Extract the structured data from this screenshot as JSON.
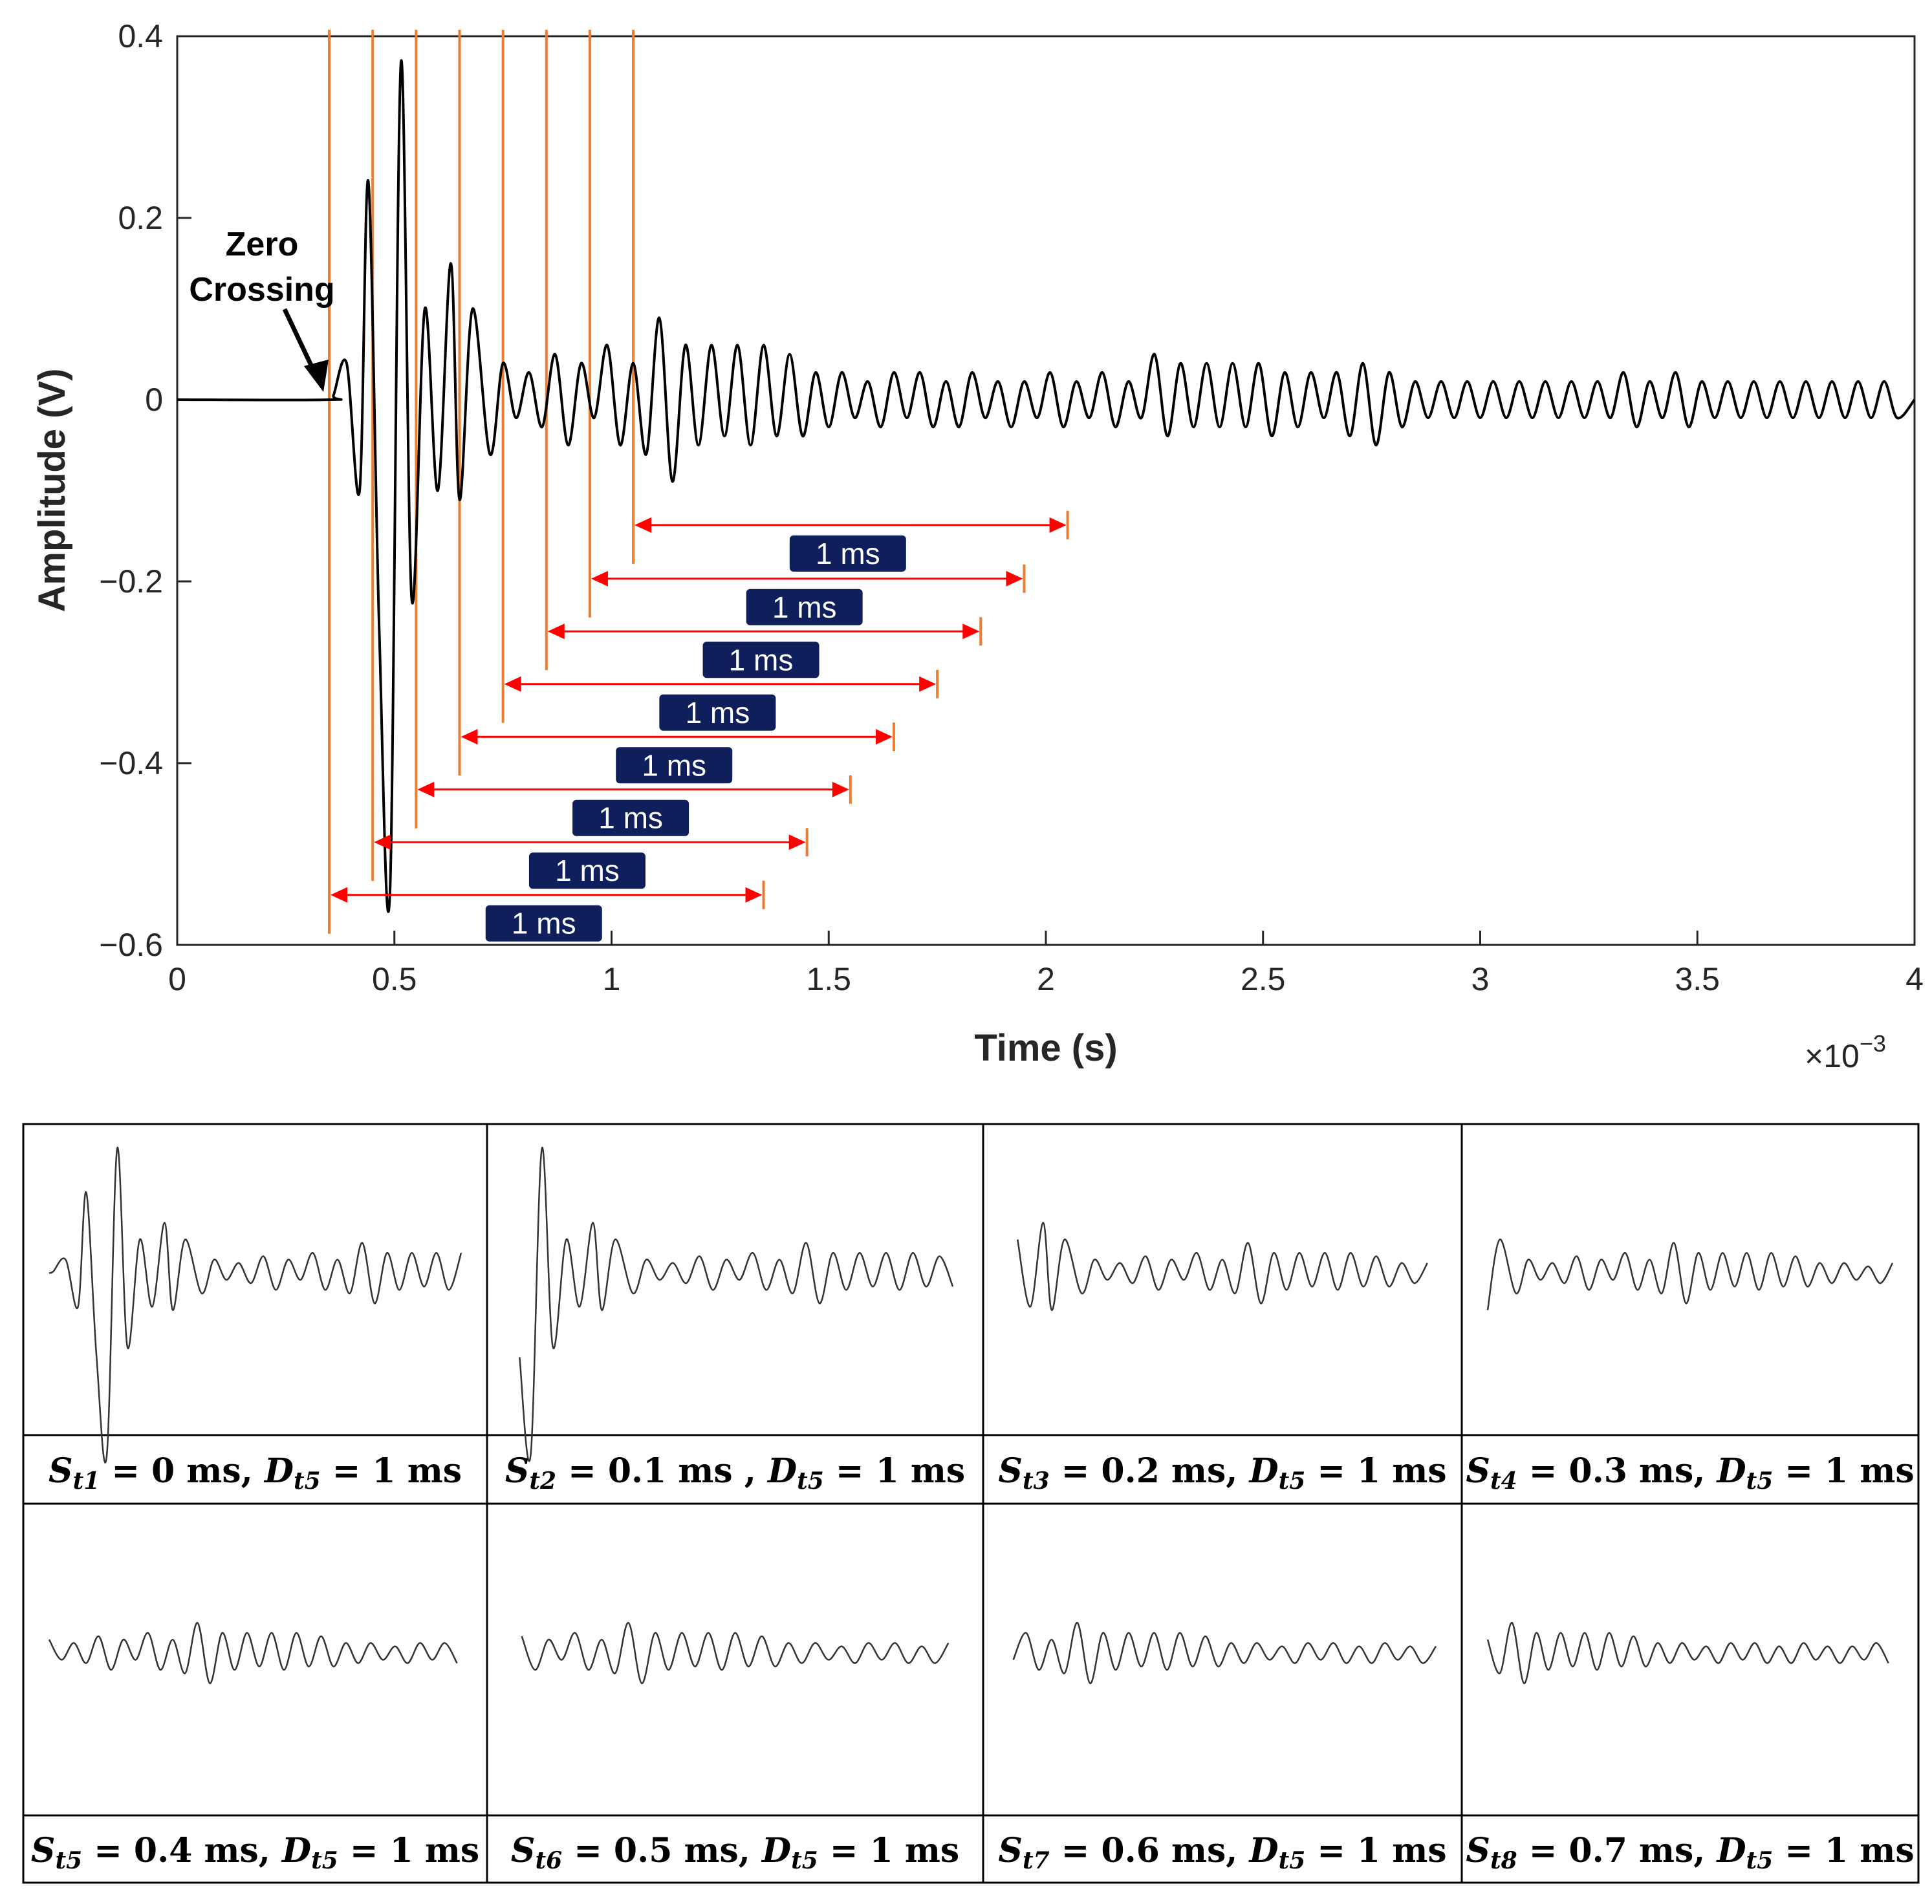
{
  "chart_data": {
    "type": "line",
    "xlabel": "Time (s)",
    "ylabel": "Amplitude (V)",
    "x_scale_label": "×10",
    "x_scale_exponent": "−3",
    "xlim": [
      0,
      4
    ],
    "ylim": [
      -0.6,
      0.4
    ],
    "xticks": [
      0,
      0.5,
      1,
      1.5,
      2,
      2.5,
      3,
      3.5,
      4
    ],
    "xtick_labels": [
      "0",
      "0.5",
      "1",
      "1.5",
      "2",
      "2.5",
      "3",
      "3.5",
      "4"
    ],
    "yticks": [
      0.4,
      0.2,
      0,
      -0.2,
      -0.4,
      -0.6
    ],
    "ytick_labels": [
      "0.4",
      "0.2",
      "0",
      "−0.2",
      "−0.4",
      "−0.6"
    ],
    "annotation": [
      "Zero",
      "Crossing"
    ],
    "annotation_point": [
      0.35,
      0
    ],
    "window_starts": [
      0.35,
      0.45,
      0.55,
      0.65,
      0.75,
      0.85,
      0.95,
      1.05
    ],
    "window_duration": 1.0,
    "window_arrow_y": [
      -0.545,
      -0.487,
      -0.429,
      -0.371,
      -0.313,
      -0.255,
      -0.197,
      -0.138
    ],
    "window_label": "1 ms",
    "series": [
      {
        "name": "signal",
        "x": [
          0,
          0.35,
          0.36,
          0.39,
          0.42,
          0.44,
          0.465,
          0.49,
          0.515,
          0.54,
          0.57,
          0.6,
          0.63,
          0.65,
          0.68,
          0.72,
          0.75,
          0.78,
          0.81,
          0.84,
          0.87,
          0.9,
          0.93,
          0.96,
          0.99,
          1.02,
          1.05,
          1.08,
          1.11,
          1.14,
          1.17,
          1.2,
          1.23,
          1.26,
          1.29,
          1.32,
          1.35,
          1.38,
          1.41,
          1.44,
          1.47,
          1.5,
          1.53,
          1.56,
          1.59,
          1.62,
          1.65,
          1.68,
          1.71,
          1.74,
          1.77,
          1.8,
          1.83,
          1.86,
          1.89,
          1.92,
          1.95,
          1.98,
          2.01,
          2.04,
          2.07,
          2.1,
          2.13,
          2.16,
          2.19,
          2.22,
          2.25,
          2.28,
          2.31,
          2.34,
          2.37,
          2.4,
          2.43,
          2.46,
          2.49,
          2.52,
          2.55,
          2.58,
          2.61,
          2.64,
          2.67,
          2.7,
          2.73,
          2.76,
          2.79,
          2.82,
          2.85,
          2.88,
          2.91,
          2.94,
          2.97,
          3.0,
          3.03,
          3.06,
          3.09,
          3.12,
          3.15,
          3.18,
          3.21,
          3.24,
          3.27,
          3.3,
          3.33,
          3.36,
          3.39,
          3.42,
          3.45,
          3.48,
          3.51,
          3.54,
          3.57,
          3.6,
          3.63,
          3.66,
          3.69,
          3.72,
          3.75,
          3.78,
          3.81,
          3.84,
          3.87,
          3.9,
          3.93,
          3.96,
          4.0
        ],
        "y": [
          0,
          0,
          0.005,
          0.04,
          -0.1,
          0.24,
          -0.25,
          -0.54,
          0.37,
          -0.22,
          0.1,
          -0.1,
          0.15,
          -0.11,
          0.1,
          -0.06,
          0.04,
          -0.02,
          0.03,
          -0.03,
          0.05,
          -0.05,
          0.04,
          -0.02,
          0.06,
          -0.05,
          0.04,
          -0.06,
          0.09,
          -0.09,
          0.06,
          -0.05,
          0.06,
          -0.04,
          0.06,
          -0.05,
          0.06,
          -0.04,
          0.05,
          -0.04,
          0.03,
          -0.03,
          0.03,
          -0.02,
          0.02,
          -0.03,
          0.03,
          -0.02,
          0.03,
          -0.03,
          0.02,
          -0.03,
          0.03,
          -0.02,
          0.02,
          -0.03,
          0.02,
          -0.02,
          0.03,
          -0.03,
          0.02,
          -0.02,
          0.03,
          -0.03,
          0.02,
          -0.02,
          0.05,
          -0.04,
          0.04,
          -0.03,
          0.04,
          -0.03,
          0.04,
          -0.03,
          0.04,
          -0.04,
          0.03,
          -0.03,
          0.03,
          -0.02,
          0.03,
          -0.04,
          0.04,
          -0.05,
          0.03,
          -0.03,
          0.02,
          -0.02,
          0.02,
          -0.02,
          0.02,
          -0.02,
          0.02,
          -0.02,
          0.02,
          -0.02,
          0.02,
          -0.02,
          0.02,
          -0.02,
          0.02,
          -0.02,
          0.03,
          -0.03,
          0.02,
          -0.02,
          0.03,
          -0.03,
          0.02,
          -0.02,
          0.02,
          -0.02,
          0.02,
          -0.02,
          0.02,
          -0.02,
          0.02,
          -0.02,
          0.02,
          -0.02,
          0.02,
          -0.02,
          0.02,
          -0.02,
          0
        ]
      }
    ]
  },
  "panels": [
    {
      "s_sub": "t1",
      "s_val": "0 ms,",
      "d_sub": "t5",
      "d_val": "1 ms",
      "start": 0.35
    },
    {
      "s_sub": "t2",
      "s_val": "0.1 ms ,",
      "d_sub": "t5",
      "d_val": "1 ms",
      "start": 0.45
    },
    {
      "s_sub": "t3",
      "s_val": "0.2 ms,",
      "d_sub": "t5",
      "d_val": "1 ms",
      "start": 0.55
    },
    {
      "s_sub": "t4",
      "s_val": "0.3 ms,",
      "d_sub": "t5",
      "d_val": "1 ms",
      "start": 0.65
    },
    {
      "s_sub": "t5",
      "s_val": "0.4 ms,",
      "d_sub": "t5",
      "d_val": "1 ms",
      "start": 0.75
    },
    {
      "s_sub": "t6",
      "s_val": "0.5 ms,",
      "d_sub": "t5",
      "d_val": "1 ms",
      "start": 0.85
    },
    {
      "s_sub": "t7",
      "s_val": "0.6 ms,",
      "d_sub": "t5",
      "d_val": "1 ms",
      "start": 0.95
    },
    {
      "s_sub": "t8",
      "s_val": "0.7 ms,",
      "d_sub": "t5",
      "d_val": "1 ms",
      "start": 1.05
    }
  ],
  "panel_symbols": {
    "s": "S",
    "d": "D",
    "eq": " = "
  },
  "colors": {
    "signal": "#000000",
    "window_line": "#ed7d31",
    "arrow": "#ff0000",
    "label_box": "#0f1f5c",
    "axis": "#262626"
  }
}
